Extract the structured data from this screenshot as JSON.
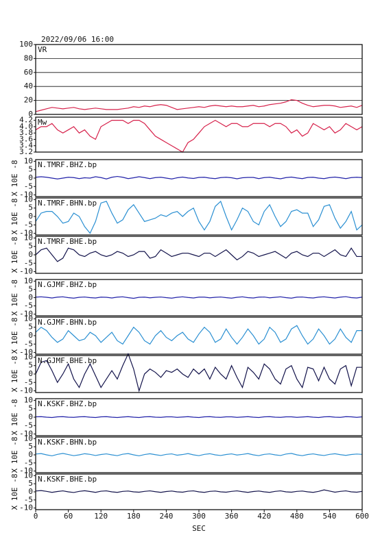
{
  "chart_data": {
    "type": "line",
    "title": "2022/09/06 16:00",
    "xlabel": "SEC",
    "xlim": [
      0,
      600
    ],
    "xticks": [
      0,
      60,
      120,
      180,
      240,
      300,
      360,
      420,
      480,
      540,
      600
    ],
    "x": [
      0,
      10,
      20,
      30,
      40,
      50,
      60,
      70,
      80,
      90,
      100,
      110,
      120,
      130,
      140,
      150,
      160,
      170,
      180,
      190,
      200,
      210,
      220,
      230,
      240,
      250,
      260,
      270,
      280,
      290,
      300,
      310,
      320,
      330,
      340,
      350,
      360,
      370,
      380,
      390,
      400,
      410,
      420,
      430,
      440,
      450,
      460,
      470,
      480,
      490,
      500,
      510,
      520,
      530,
      540,
      550,
      560,
      570,
      580,
      590,
      600
    ],
    "panels": [
      {
        "ylim": [
          0,
          100
        ],
        "yticks": [
          0,
          20,
          40,
          60,
          80,
          100
        ],
        "grid": true,
        "series": [
          {
            "name": "VR",
            "color": "#d6204a",
            "values": [
              4,
              6,
              8,
              10,
              9,
              8,
              9,
              10,
              8,
              7,
              8,
              9,
              8,
              7,
              7,
              7,
              8,
              9,
              11,
              10,
              12,
              11,
              13,
              14,
              13,
              10,
              7,
              8,
              9,
              10,
              11,
              10,
              12,
              13,
              12,
              11,
              12,
              11,
              11,
              12,
              13,
              11,
              12,
              14,
              15,
              16,
              18,
              21,
              20,
              16,
              13,
              11,
              12,
              13,
              13,
              12,
              10,
              11,
              12,
              10,
              13
            ]
          }
        ]
      },
      {
        "ylim": [
          3.2,
          4.3
        ],
        "yticks": [
          3.2,
          3.4,
          3.6,
          3.8,
          {
            "value": 4,
            "label": "4.0"
          },
          4.2
        ],
        "grid": false,
        "series": [
          {
            "name": "Mw",
            "color": "#d6204a",
            "values": [
              3.9,
              4.0,
              4.0,
              4.1,
              3.9,
              3.8,
              3.9,
              4.0,
              3.8,
              3.9,
              3.7,
              3.6,
              4.0,
              4.1,
              4.2,
              4.2,
              4.2,
              4.1,
              4.2,
              4.2,
              4.1,
              3.9,
              3.7,
              3.6,
              3.5,
              3.4,
              3.3,
              3.2,
              3.5,
              3.6,
              3.8,
              4.0,
              4.1,
              4.2,
              4.1,
              4.0,
              4.1,
              4.1,
              4.0,
              4.0,
              4.1,
              4.1,
              4.1,
              4.0,
              4.1,
              4.1,
              4.0,
              3.8,
              3.9,
              3.7,
              3.8,
              4.1,
              4.0,
              3.9,
              4.0,
              3.8,
              3.9,
              4.1,
              4.0,
              3.9,
              4.0
            ]
          }
        ]
      },
      {
        "ylabel": "X 10E -8",
        "ylim": [
          -11,
          11
        ],
        "yticks": [
          10,
          5,
          0,
          -5,
          -10
        ],
        "grid": false,
        "series": [
          {
            "name": "N.TMRF.BHZ.bp",
            "color": "#2020a8",
            "values": [
              0.5,
              0.8,
              0.5,
              0,
              -0.5,
              0,
              0.5,
              0.3,
              -0.3,
              0.2,
              0,
              0.8,
              0.3,
              -0.5,
              0.5,
              1,
              0.5,
              -0.3,
              0.2,
              0.8,
              0.3,
              -0.3,
              0.3,
              0.5,
              0,
              -0.5,
              0.2,
              0.6,
              0.1,
              -0.2,
              0.4,
              0.5,
              0,
              -0.3,
              0.3,
              0.5,
              0.2,
              -0.4,
              0.2,
              0.4,
              0.4,
              -0.3,
              0.3,
              0.5,
              0,
              -0.4,
              0.3,
              0.6,
              0.1,
              -0.3,
              0.4,
              0.5,
              0,
              -0.3,
              0.3,
              0.6,
              0.2,
              -0.3,
              0.3,
              0.5,
              0.3
            ]
          }
        ]
      },
      {
        "ylabel": "X 10E -8",
        "ylim": [
          -11,
          11
        ],
        "yticks": [
          10,
          5,
          0,
          -5,
          -10
        ],
        "grid": false,
        "series": [
          {
            "name": "N.TMRF.BHN.bp",
            "color": "#2a8fd2",
            "values": [
              -3,
              2,
              3,
              3,
              0,
              -4,
              -3,
              2,
              0,
              -6,
              -10,
              -3,
              8,
              9,
              2,
              -4,
              -2,
              4,
              7,
              2,
              -3,
              -2,
              -1,
              1,
              0,
              2,
              3,
              0,
              3,
              5,
              -3,
              -8,
              -3,
              6,
              9,
              0,
              -8,
              -2,
              5,
              3,
              -3,
              -5,
              3,
              7,
              0,
              -6,
              -3,
              3,
              4,
              2,
              2,
              -6,
              -2,
              6,
              7,
              -1,
              -7,
              -3,
              3,
              -8,
              -5
            ]
          }
        ]
      },
      {
        "ylabel": "X 10E -8",
        "ylim": [
          -11,
          11
        ],
        "yticks": [
          10,
          5,
          0,
          -5,
          -10
        ],
        "grid": false,
        "series": [
          {
            "name": "N.TMRF.BHE.bp",
            "color": "#12124a",
            "values": [
              0,
              3,
              4,
              0,
              -4,
              -2,
              4,
              3,
              0,
              -1,
              1,
              2,
              0,
              -1,
              0,
              2,
              1,
              -1,
              0,
              2,
              2,
              -2,
              -1,
              3,
              1,
              -1,
              0,
              1,
              1,
              0,
              -1,
              1,
              1,
              -1,
              1,
              3,
              0,
              -3,
              -1,
              2,
              1,
              -1,
              0,
              1,
              2,
              0,
              -2,
              1,
              2,
              0,
              -1,
              1,
              1,
              -1,
              1,
              3,
              0,
              -1,
              4,
              -1,
              -1
            ]
          }
        ]
      },
      {
        "ylabel": "X 10E -8",
        "ylim": [
          -11,
          11
        ],
        "yticks": [
          10,
          5,
          0,
          -5,
          -10
        ],
        "grid": false,
        "series": [
          {
            "name": "N.GJMF.BHZ.bp",
            "color": "#2020a8",
            "values": [
              0.3,
              0.5,
              0.2,
              -0.2,
              0.3,
              0.5,
              0,
              -0.3,
              0.2,
              0.4,
              0,
              -0.2,
              0.3,
              0.2,
              -0.2,
              0.3,
              0.5,
              0,
              -0.4,
              0.2,
              0.3,
              -0.1,
              0.2,
              0.4,
              0,
              -0.3,
              0.2,
              0.5,
              0.1,
              -0.2,
              0.3,
              0.3,
              -0.1,
              0.2,
              0.4,
              0,
              -0.3,
              0.2,
              0.5,
              0,
              -0.2,
              0.3,
              0.4,
              -0.1,
              0.2,
              0.5,
              0,
              -0.3,
              0.3,
              0.4,
              0,
              -0.2,
              0.3,
              0.5,
              0.1,
              -0.2,
              0.3,
              0.6,
              0,
              -0.2,
              0.3
            ]
          }
        ]
      },
      {
        "ylabel": "X 10E -8",
        "ylim": [
          -11,
          11
        ],
        "yticks": [
          10,
          5,
          0,
          -5,
          -10
        ],
        "grid": false,
        "series": [
          {
            "name": "N.GJMF.BHN.bp",
            "color": "#2a8fd2",
            "values": [
              2,
              5,
              3,
              -1,
              -4,
              -2,
              3,
              0,
              -3,
              -2,
              2,
              0,
              -4,
              -1,
              2,
              -3,
              -5,
              0,
              5,
              2,
              -3,
              -5,
              0,
              3,
              -1,
              -3,
              0,
              2,
              -2,
              -4,
              1,
              5,
              2,
              -4,
              -2,
              4,
              -1,
              -5,
              -1,
              4,
              0,
              -5,
              -2,
              5,
              2,
              -4,
              -2,
              4,
              6,
              0,
              -5,
              -2,
              4,
              0,
              -5,
              -2,
              4,
              -1,
              -4,
              3,
              3
            ]
          }
        ]
      },
      {
        "ylabel": "X 10E -8",
        "ylim": [
          -11,
          11
        ],
        "yticks": [
          10,
          5,
          0,
          -5,
          -10
        ],
        "grid": false,
        "series": [
          {
            "name": "N.GJMF.BHE.bp",
            "color": "#12124a",
            "values": [
              0,
              7,
              8,
              2,
              -5,
              0,
              6,
              -3,
              -8,
              0,
              6,
              -1,
              -8,
              -3,
              2,
              -3,
              5,
              12,
              3,
              -10,
              0,
              3,
              1,
              -2,
              2,
              1,
              3,
              0,
              -2,
              3,
              0,
              3,
              -3,
              4,
              0,
              -3,
              5,
              -2,
              -8,
              4,
              1,
              -3,
              6,
              3,
              -3,
              -6,
              3,
              5,
              -3,
              -8,
              4,
              3,
              -4,
              4,
              -3,
              -6,
              3,
              5,
              -7,
              4,
              4
            ]
          }
        ]
      },
      {
        "ylabel": "X 10E -8",
        "ylim": [
          -11,
          11
        ],
        "yticks": [
          10,
          5,
          0,
          -5,
          -10
        ],
        "grid": false,
        "series": [
          {
            "name": "N.KSKF.BHZ.bp",
            "color": "#2020a8",
            "values": [
              0.2,
              0.3,
              0,
              -0.2,
              0.2,
              0.3,
              0,
              -0.1,
              0.2,
              0.3,
              0,
              -0.2,
              0.2,
              0.3,
              0,
              -0.2,
              0.1,
              0.3,
              0,
              -0.2,
              0.2,
              0.3,
              0,
              -0.1,
              0.2,
              0.2,
              -0.1,
              0.1,
              0.3,
              0,
              -0.2,
              0.2,
              0.3,
              0,
              -0.1,
              0.2,
              0.2,
              -0.1,
              0.1,
              0.3,
              0,
              -0.2,
              0.2,
              0.3,
              0,
              -0.1,
              0.2,
              0.2,
              -0.1,
              0.1,
              0.3,
              0,
              -0.2,
              0.2,
              0.3,
              0,
              -0.1,
              0.3,
              0.2,
              -0.1,
              0.2
            ]
          }
        ]
      },
      {
        "ylabel": "X 10E -8",
        "ylim": [
          -11,
          11
        ],
        "yticks": [
          10,
          5,
          0,
          -5,
          -10
        ],
        "grid": false,
        "series": [
          {
            "name": "N.KSKF.BHN.bp",
            "color": "#2a8fd2",
            "values": [
              0.5,
              0.8,
              0,
              -0.6,
              0.3,
              0.9,
              0.2,
              -0.5,
              0,
              0.7,
              0.3,
              -0.4,
              0.2,
              0.6,
              0,
              -0.5,
              0.4,
              0.8,
              0,
              -0.6,
              0.2,
              0.7,
              0.1,
              -0.4,
              0.3,
              0.6,
              -0.2,
              0.2,
              0.8,
              0,
              -0.5,
              0.3,
              0.7,
              0,
              -0.4,
              0.2,
              0.6,
              -0.1,
              0.3,
              0.8,
              0,
              -0.5,
              0.3,
              0.6,
              0,
              -0.4,
              0.5,
              0.9,
              0,
              -0.5,
              0.2,
              0.6,
              0,
              -0.4,
              0.3,
              0.7,
              0.1,
              -0.3,
              0.2,
              0.5,
              0.3
            ]
          }
        ]
      },
      {
        "ylabel": "X 10E -8",
        "ylim": [
          -11,
          11
        ],
        "yticks": [
          10,
          5,
          0,
          -5,
          -10
        ],
        "grid": false,
        "series": [
          {
            "name": "N.KSKF.BHE.bp",
            "color": "#12124a",
            "values": [
              0.5,
              0.8,
              0.3,
              -0.3,
              0.2,
              0.6,
              0,
              -0.4,
              0.3,
              0.7,
              0.2,
              -0.3,
              0.4,
              0.6,
              0,
              -0.3,
              0.3,
              0.5,
              0,
              -0.2,
              0.3,
              0.6,
              0.1,
              -0.3,
              0.2,
              0.5,
              0,
              -0.2,
              0.4,
              0.6,
              0,
              -0.3,
              0.3,
              0.5,
              0,
              -0.2,
              0.3,
              0.6,
              0.1,
              -0.3,
              0.2,
              0.5,
              0,
              -0.3,
              0.3,
              0.6,
              0,
              -0.2,
              0.3,
              0.5,
              0,
              -0.3,
              0.3,
              1.2,
              0.5,
              -0.2,
              0.3,
              0.6,
              0,
              -0.2,
              0.3
            ]
          }
        ]
      }
    ]
  }
}
